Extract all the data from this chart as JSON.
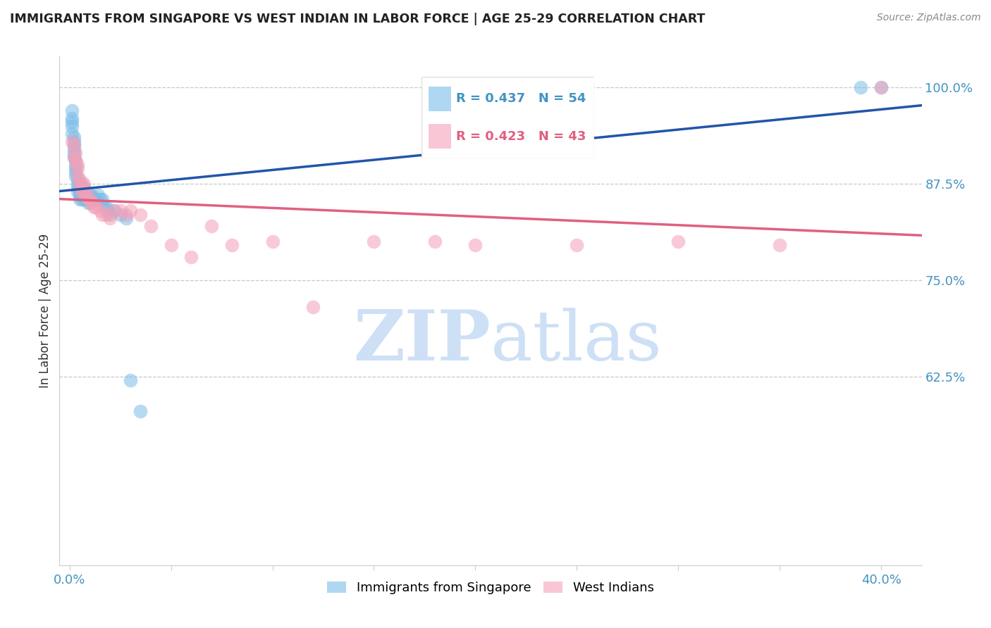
{
  "title": "IMMIGRANTS FROM SINGAPORE VS WEST INDIAN IN LABOR FORCE | AGE 25-29 CORRELATION CHART",
  "source": "Source: ZipAtlas.com",
  "ylabel": "In Labor Force | Age 25-29",
  "right_yticks": [
    1.0,
    0.875,
    0.75,
    0.625
  ],
  "right_yticklabels": [
    "100.0%",
    "87.5%",
    "75.0%",
    "62.5%"
  ],
  "xlim": [
    -0.005,
    0.42
  ],
  "ylim": [
    0.38,
    1.04
  ],
  "singapore_R": 0.437,
  "singapore_N": 54,
  "westindian_R": 0.423,
  "westindian_N": 43,
  "singapore_color": "#7bbde8",
  "westindian_color": "#f4a0b8",
  "singapore_line_color": "#2255aa",
  "westindian_line_color": "#e06080",
  "legend_label_sg": "Immigrants from Singapore",
  "legend_label_wi": "West Indians",
  "watermark_zip": "ZIP",
  "watermark_atlas": "atlas",
  "watermark_color": "#cde0f5",
  "sg_x": [
    0.001,
    0.001,
    0.001,
    0.001,
    0.001,
    0.002,
    0.002,
    0.002,
    0.002,
    0.002,
    0.002,
    0.003,
    0.003,
    0.003,
    0.003,
    0.003,
    0.004,
    0.004,
    0.004,
    0.004,
    0.005,
    0.005,
    0.005,
    0.005,
    0.005,
    0.006,
    0.006,
    0.006,
    0.007,
    0.007,
    0.007,
    0.008,
    0.008,
    0.009,
    0.009,
    0.01,
    0.01,
    0.011,
    0.012,
    0.013,
    0.014,
    0.015,
    0.016,
    0.017,
    0.018,
    0.019,
    0.02,
    0.022,
    0.025,
    0.028,
    0.03,
    0.035,
    0.39,
    0.4
  ],
  "sg_y": [
    0.97,
    0.96,
    0.955,
    0.95,
    0.94,
    0.935,
    0.93,
    0.925,
    0.92,
    0.915,
    0.91,
    0.905,
    0.9,
    0.895,
    0.89,
    0.885,
    0.88,
    0.875,
    0.87,
    0.865,
    0.875,
    0.87,
    0.865,
    0.86,
    0.855,
    0.87,
    0.865,
    0.855,
    0.87,
    0.86,
    0.855,
    0.865,
    0.855,
    0.86,
    0.85,
    0.86,
    0.85,
    0.86,
    0.855,
    0.855,
    0.86,
    0.855,
    0.855,
    0.845,
    0.845,
    0.84,
    0.835,
    0.84,
    0.835,
    0.83,
    0.62,
    0.58,
    1.0,
    1.0
  ],
  "wi_x": [
    0.001,
    0.002,
    0.002,
    0.003,
    0.003,
    0.004,
    0.004,
    0.004,
    0.005,
    0.005,
    0.006,
    0.006,
    0.007,
    0.007,
    0.008,
    0.009,
    0.01,
    0.011,
    0.012,
    0.013,
    0.015,
    0.016,
    0.018,
    0.02,
    0.022,
    0.025,
    0.028,
    0.03,
    0.035,
    0.04,
    0.05,
    0.06,
    0.07,
    0.08,
    0.1,
    0.12,
    0.15,
    0.18,
    0.2,
    0.25,
    0.3,
    0.35,
    0.4
  ],
  "wi_y": [
    0.93,
    0.925,
    0.91,
    0.915,
    0.905,
    0.9,
    0.895,
    0.885,
    0.88,
    0.87,
    0.875,
    0.865,
    0.875,
    0.865,
    0.865,
    0.855,
    0.855,
    0.85,
    0.845,
    0.845,
    0.84,
    0.835,
    0.835,
    0.83,
    0.84,
    0.84,
    0.835,
    0.84,
    0.835,
    0.82,
    0.795,
    0.78,
    0.82,
    0.795,
    0.8,
    0.715,
    0.8,
    0.8,
    0.795,
    0.795,
    0.8,
    0.795,
    1.0
  ]
}
